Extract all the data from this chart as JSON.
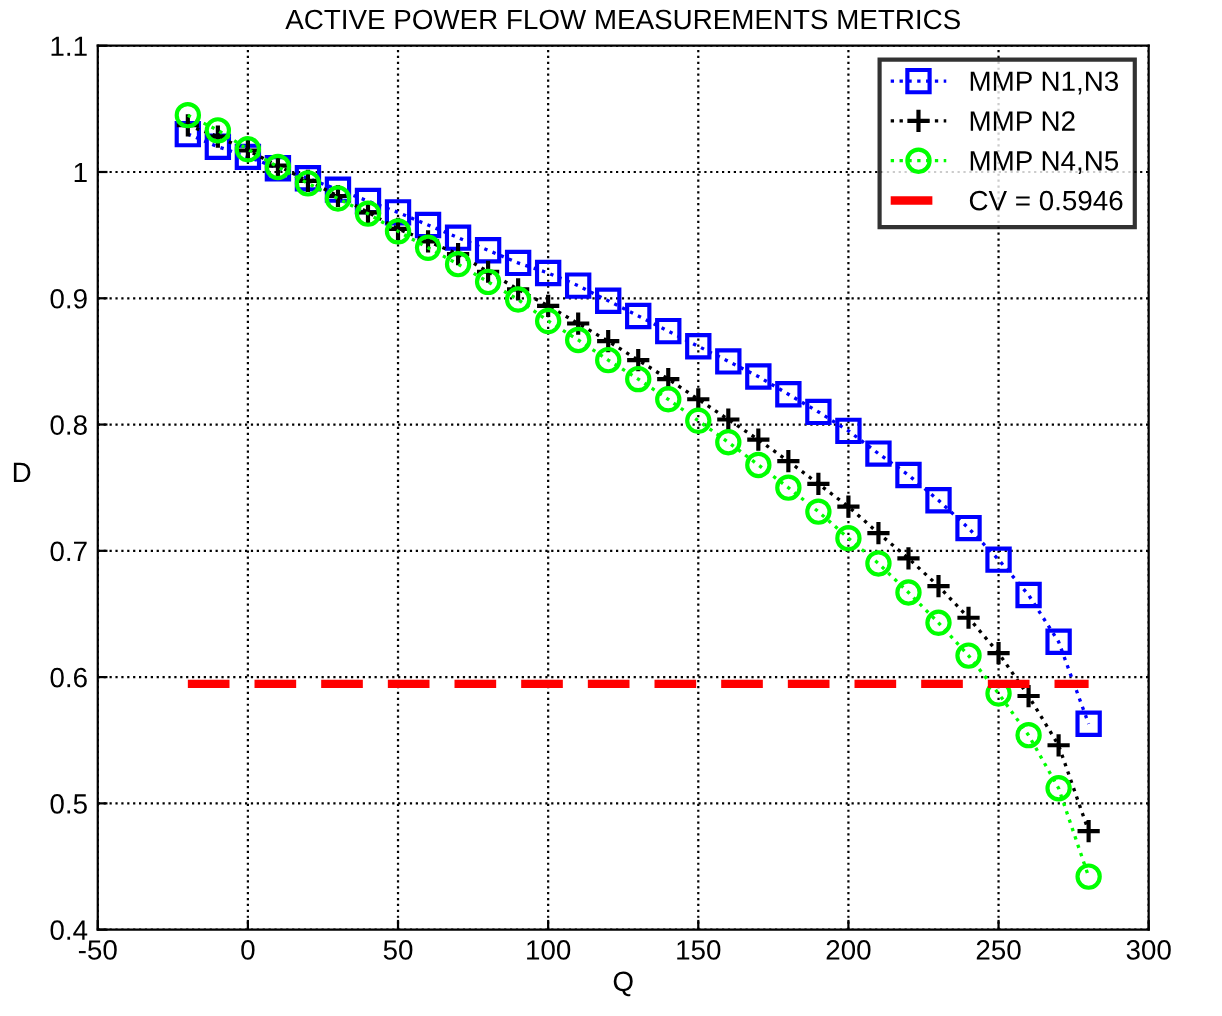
{
  "chart_data": {
    "type": "line",
    "title": "ACTIVE POWER FLOW MEASUREMENTS METRICS",
    "xlabel": "Q",
    "ylabel": "D",
    "x": [
      -20,
      -10,
      0,
      10,
      20,
      30,
      40,
      50,
      60,
      70,
      80,
      90,
      100,
      110,
      120,
      130,
      140,
      150,
      160,
      170,
      180,
      190,
      200,
      210,
      220,
      230,
      240,
      250,
      260,
      270,
      280
    ],
    "series": [
      {
        "name": "MMP N1,N3",
        "color": "#0000ff",
        "marker": "square",
        "line_style": "dotted",
        "values": [
          1.03,
          1.02,
          1.012,
          1.003,
          0.995,
          0.986,
          0.977,
          0.968,
          0.958,
          0.948,
          0.938,
          0.928,
          0.92,
          0.91,
          0.898,
          0.886,
          0.874,
          0.862,
          0.85,
          0.838,
          0.824,
          0.81,
          0.795,
          0.777,
          0.76,
          0.74,
          0.718,
          0.693,
          0.665,
          0.628,
          0.563
        ]
      },
      {
        "name": "MMP N2",
        "color": "#000000",
        "marker": "cross",
        "line_style": "dotted",
        "values": [
          1.037,
          1.028,
          1.017,
          1.005,
          0.993,
          0.981,
          0.968,
          0.955,
          0.945,
          0.935,
          0.921,
          0.907,
          0.894,
          0.88,
          0.866,
          0.851,
          0.836,
          0.82,
          0.804,
          0.788,
          0.771,
          0.753,
          0.735,
          0.714,
          0.694,
          0.672,
          0.647,
          0.619,
          0.585,
          0.546,
          0.478
        ]
      },
      {
        "name": "MMP N4,N5",
        "color": "#00ff00",
        "marker": "circle",
        "line_style": "dotted",
        "values": [
          1.045,
          1.033,
          1.018,
          1.004,
          0.991,
          0.979,
          0.967,
          0.953,
          0.94,
          0.927,
          0.913,
          0.899,
          0.882,
          0.867,
          0.851,
          0.836,
          0.82,
          0.803,
          0.786,
          0.768,
          0.75,
          0.731,
          0.71,
          0.69,
          0.667,
          0.643,
          0.617,
          0.587,
          0.554,
          0.512,
          0.442
        ]
      },
      {
        "name": "CV = 0.5946",
        "color": "#ff0000",
        "marker": "none",
        "line_style": "dashed",
        "x": [
          -20,
          280
        ],
        "values": [
          0.5946,
          0.5946
        ]
      }
    ],
    "xlim": [
      -50,
      300
    ],
    "xticks": [
      -50,
      0,
      50,
      100,
      150,
      200,
      250,
      300
    ],
    "ylim": [
      0.4,
      1.1
    ],
    "yticks": [
      0.4,
      0.5,
      0.6,
      0.7,
      0.8,
      0.9,
      1,
      1.1
    ],
    "grid": true,
    "legend": "top right"
  }
}
